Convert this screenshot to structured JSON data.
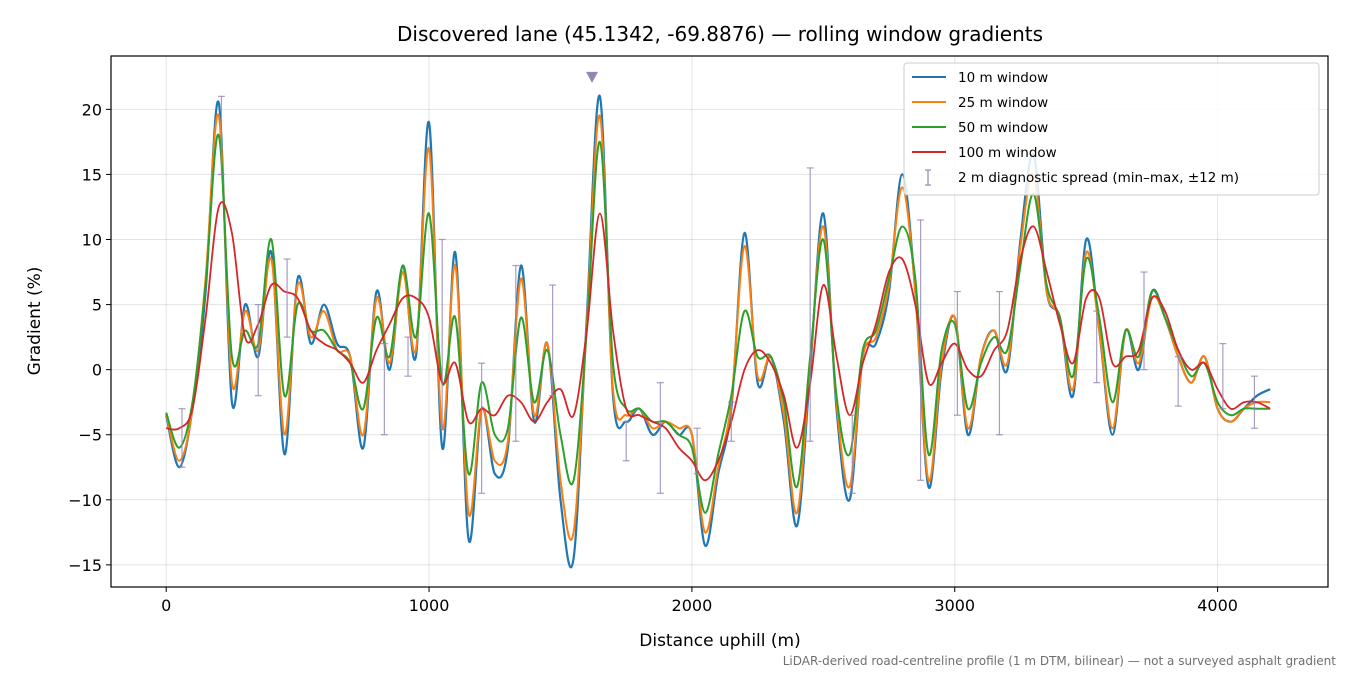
{
  "chart_data": {
    "type": "line",
    "title": "Discovered lane (45.1342, -69.8876) — rolling window gradients",
    "xlabel": "Distance uphill (m)",
    "ylabel": "Gradient (%)",
    "footnote": "LiDAR-derived road-centreline profile (1 m DTM, bilinear) — not a surveyed asphalt gradient",
    "xlim": [
      -210,
      4420
    ],
    "ylim": [
      -16.7,
      24.1
    ],
    "xticks": [
      0,
      1000,
      2000,
      3000,
      4000
    ],
    "xtick_labels": [
      "0",
      "1000",
      "2000",
      "3000",
      "4000"
    ],
    "yticks": [
      -15,
      -10,
      -5,
      0,
      5,
      10,
      15,
      20
    ],
    "ytick_labels": [
      "−15",
      "−10",
      "−5",
      "0",
      "5",
      "10",
      "15",
      "20"
    ],
    "grid": true,
    "legend_position": "top-right",
    "x": [
      0,
      50,
      100,
      150,
      200,
      250,
      300,
      350,
      400,
      450,
      500,
      550,
      600,
      650,
      700,
      750,
      800,
      850,
      900,
      950,
      1000,
      1050,
      1100,
      1150,
      1200,
      1250,
      1300,
      1350,
      1400,
      1450,
      1500,
      1550,
      1600,
      1650,
      1700,
      1750,
      1800,
      1850,
      1900,
      1950,
      2000,
      2050,
      2100,
      2150,
      2200,
      2250,
      2300,
      2350,
      2400,
      2450,
      2500,
      2550,
      2600,
      2650,
      2700,
      2750,
      2800,
      2850,
      2900,
      2950,
      3000,
      3050,
      3100,
      3150,
      3200,
      3250,
      3300,
      3350,
      3400,
      3450,
      3500,
      3550,
      3600,
      3650,
      3700,
      3750,
      3800,
      3850,
      3900,
      3950,
      4000,
      4050,
      4100,
      4150,
      4200
    ],
    "series": [
      {
        "name": "10 m window",
        "color": "#1f77b4",
        "values": [
          -3.5,
          -7.5,
          -3.0,
          6.0,
          20.5,
          -2.5,
          5.0,
          1.0,
          9.0,
          -6.5,
          7.0,
          2.0,
          5.0,
          2.0,
          1.0,
          -6.0,
          6.0,
          0.0,
          8.0,
          1.0,
          19.0,
          -6.0,
          9.0,
          -13.0,
          -3.0,
          -8.0,
          -6.0,
          8.0,
          -4.0,
          2.0,
          -10.0,
          -14.5,
          4.0,
          21.0,
          -2.0,
          -4.0,
          -3.0,
          -5.0,
          -4.0,
          -5.0,
          -5.0,
          -13.5,
          -8.0,
          -3.0,
          10.5,
          -1.0,
          1.0,
          -4.0,
          -12.0,
          0.0,
          12.0,
          -3.0,
          -10.0,
          1.0,
          2.0,
          6.0,
          15.0,
          6.0,
          -9.0,
          0.0,
          4.0,
          -5.0,
          1.0,
          3.0,
          0.0,
          10.0,
          16.5,
          6.0,
          4.0,
          -2.0,
          10.0,
          3.0,
          -5.0,
          3.0,
          0.0,
          6.0,
          4.0,
          1.0,
          -1.0,
          1.0,
          -3.0,
          -4.0,
          -3.0,
          -2.0,
          -1.5
        ]
      },
      {
        "name": "25 m window",
        "color": "#ff7f0e",
        "values": [
          -3.4,
          -7.0,
          -3.0,
          7.0,
          19.5,
          -1.0,
          4.5,
          1.5,
          8.5,
          -5.0,
          6.5,
          2.5,
          4.5,
          1.5,
          1.0,
          -5.0,
          5.5,
          0.5,
          7.5,
          1.5,
          17.0,
          -4.5,
          8.0,
          -11.0,
          -3.0,
          -7.0,
          -5.5,
          7.0,
          -3.5,
          2.0,
          -8.5,
          -12.5,
          3.5,
          19.5,
          -1.5,
          -3.5,
          -3.0,
          -4.5,
          -4.0,
          -4.5,
          -5.0,
          -12.5,
          -7.5,
          -2.5,
          9.5,
          -0.5,
          1.0,
          -3.5,
          -11.0,
          0.5,
          11.0,
          -2.5,
          -9.0,
          1.0,
          2.5,
          6.5,
          14.0,
          6.0,
          -8.5,
          0.5,
          4.0,
          -4.5,
          1.0,
          3.0,
          0.5,
          9.5,
          15.0,
          6.0,
          4.0,
          -1.5,
          9.0,
          3.0,
          -4.5,
          3.0,
          0.5,
          5.5,
          4.0,
          1.0,
          -1.0,
          1.0,
          -3.0,
          -4.0,
          -3.0,
          -2.5,
          -2.5
        ]
      },
      {
        "name": "50 m window",
        "color": "#2ca02c",
        "values": [
          -3.3,
          -6.0,
          -2.5,
          6.5,
          18.0,
          1.0,
          3.0,
          2.0,
          10.0,
          -2.0,
          5.0,
          3.0,
          3.0,
          1.5,
          0.5,
          -3.0,
          4.0,
          1.0,
          8.0,
          2.5,
          12.0,
          -1.0,
          4.0,
          -8.0,
          -1.0,
          -5.0,
          -4.5,
          4.0,
          -2.5,
          1.5,
          -5.0,
          -8.5,
          3.0,
          17.5,
          0.5,
          -3.0,
          -3.0,
          -4.0,
          -4.0,
          -5.0,
          -6.0,
          -11.0,
          -6.5,
          -2.0,
          4.5,
          1.0,
          1.0,
          -2.5,
          -9.0,
          1.0,
          10.0,
          -2.0,
          -6.5,
          1.5,
          3.0,
          7.0,
          11.0,
          7.0,
          -6.5,
          1.5,
          3.5,
          -3.0,
          0.5,
          2.5,
          1.5,
          8.0,
          13.5,
          6.5,
          4.0,
          -0.5,
          8.5,
          4.0,
          -2.5,
          3.0,
          1.0,
          6.0,
          4.0,
          1.5,
          -0.5,
          0.5,
          -2.5,
          -3.5,
          -3.0,
          -3.0,
          -3.0
        ]
      },
      {
        "name": "100 m window",
        "color": "#d62728",
        "values": [
          -4.5,
          -4.5,
          -3.0,
          4.0,
          12.5,
          10.5,
          2.5,
          3.5,
          6.5,
          6.0,
          5.5,
          3.0,
          2.0,
          1.5,
          0.5,
          -1.0,
          1.5,
          3.5,
          5.5,
          5.5,
          4.0,
          -1.0,
          0.5,
          -4.0,
          -3.0,
          -3.5,
          -2.0,
          -2.5,
          -4.0,
          -2.5,
          -1.5,
          -3.5,
          3.0,
          12.0,
          3.0,
          -3.0,
          -3.5,
          -4.0,
          -4.5,
          -6.0,
          -7.0,
          -8.5,
          -7.0,
          -4.0,
          0.0,
          1.5,
          0.5,
          -2.0,
          -6.0,
          -1.0,
          6.5,
          1.0,
          -3.5,
          0.5,
          3.5,
          7.5,
          8.5,
          5.0,
          -1.0,
          0.5,
          2.0,
          0.0,
          -0.5,
          1.5,
          3.0,
          8.5,
          11.0,
          7.5,
          3.5,
          0.5,
          5.5,
          5.5,
          0.5,
          1.0,
          1.5,
          5.5,
          4.5,
          1.5,
          0.0,
          0.5,
          -1.5,
          -3.0,
          -2.5,
          -2.5,
          -3.0
        ]
      },
      {
        "name": "2 m diagnostic spread (min–max, ±12 m)",
        "color": "#9484b8",
        "type": "errorbar",
        "x": [
          60,
          210,
          350,
          460,
          830,
          920,
          1050,
          1200,
          1330,
          1470,
          1750,
          1880,
          2020,
          2150,
          2450,
          2610,
          2870,
          3010,
          3170,
          3540,
          3720,
          3850,
          4020,
          4140
        ],
        "y": [
          -5.0,
          17.0,
          1.0,
          5.5,
          -2.0,
          0.0,
          2.5,
          -4.5,
          2.0,
          0.5,
          -5.5,
          -6.0,
          -6.0,
          -4.0,
          5.0,
          -5.0,
          1.0,
          1.5,
          1.0,
          1.5,
          4.0,
          -1.0,
          -2.0,
          -3.0
        ],
        "ymin": [
          -7.5,
          15.0,
          -2.0,
          2.5,
          -5.0,
          -0.5,
          -4.5,
          -9.5,
          -5.5,
          -2.0,
          -7.0,
          -9.5,
          -8.0,
          -5.5,
          -5.5,
          -9.5,
          -8.5,
          -3.5,
          -5.0,
          -1.0,
          0.0,
          -2.8,
          -3.0,
          -4.5
        ],
        "ymax": [
          -3.0,
          21.0,
          5.0,
          8.5,
          2.0,
          2.5,
          10.0,
          0.5,
          8.0,
          6.5,
          -4.0,
          -1.0,
          -4.5,
          -2.5,
          15.5,
          -3.5,
          11.5,
          6.0,
          6.0,
          4.5,
          7.5,
          1.0,
          2.0,
          -0.5
        ]
      },
      {
        "name": "peak marker",
        "color": "#9484b8",
        "type": "marker",
        "points": [
          {
            "x": 1620,
            "y": 22.5
          }
        ]
      }
    ]
  }
}
